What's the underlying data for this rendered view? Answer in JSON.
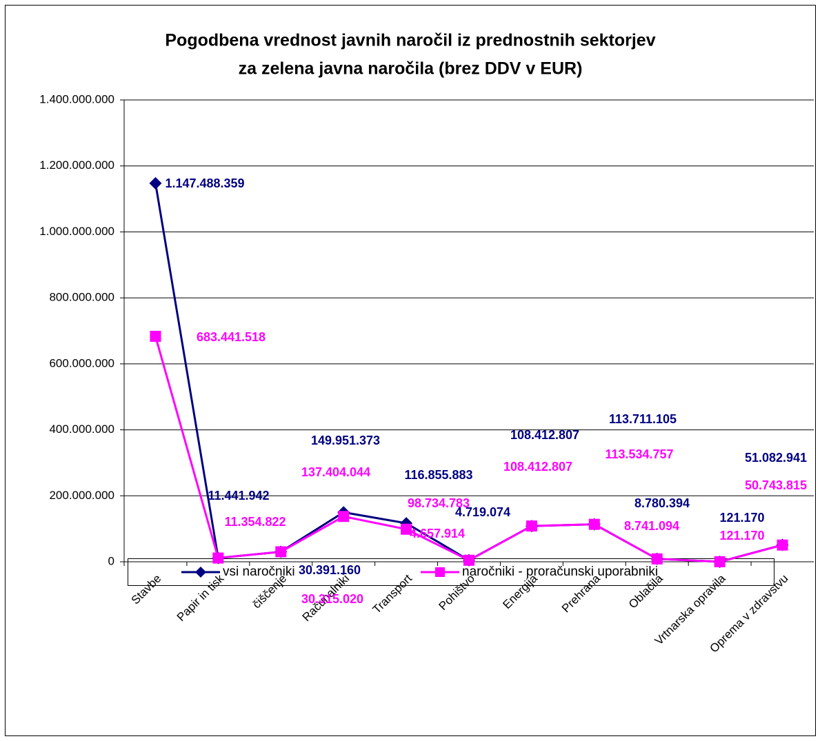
{
  "chart_data": {
    "type": "line",
    "title": [
      "Pogodbena vrednost javnih naročil iz prednostnih sektorjev",
      "za zelena javna naročila (brez DDV v EUR)"
    ],
    "categories": [
      "Stavbe",
      "Papir in tisk",
      "čiščenje",
      "Računalniki",
      "Transport",
      "Pohištvo",
      "Energija",
      "Prehrana",
      "Oblačila",
      "Vrtnarska opravila",
      "Oprema v zdravstvu"
    ],
    "series": [
      {
        "name": "vsi naročniki",
        "color": "#000080",
        "marker": "diamond",
        "values": [
          1147488359,
          11441942,
          30391160,
          149951373,
          116855883,
          4719074,
          108412807,
          113711105,
          8780394,
          121170,
          51082941
        ],
        "value_labels": [
          "1.147.488.359",
          "11.441.942",
          "30.391.160",
          "149.951.373",
          "116.855.883",
          "4.719.074",
          "108.412.807",
          "113.711.105",
          "8.780.394",
          "121.170",
          "51.082.941"
        ]
      },
      {
        "name": "naročniki - proračunski uporabniki",
        "color": "#ff00ff",
        "marker": "square",
        "values": [
          683441518,
          11354822,
          30315020,
          137404044,
          98734783,
          4657914,
          108412807,
          113534757,
          8741094,
          121170,
          50743815
        ],
        "value_labels": [
          "683.441.518",
          "11.354.822",
          "30.315.020",
          "137.404.044",
          "98.734.783",
          "4.657.914",
          "108.412.807",
          "113.534.757",
          "8.741.094",
          "121.170",
          "50.743.815"
        ]
      }
    ],
    "ylim": [
      0,
      1400000000
    ],
    "yticks": [
      0,
      {
        "value": 200000000,
        "label": "200.000.000"
      },
      {
        "value": 400000000,
        "label": "400.000.000"
      },
      {
        "value": 600000000,
        "label": "600.000.000"
      },
      {
        "value": 800000000,
        "label": "800.000.000"
      },
      {
        "value": 1000000000,
        "label": "1.000.000.000"
      },
      {
        "value": 1200000000,
        "label": "1.200.000.000"
      },
      {
        "value": 1400000000,
        "label": "1.400.000.000"
      }
    ],
    "grid": true,
    "legend": "bottom"
  }
}
